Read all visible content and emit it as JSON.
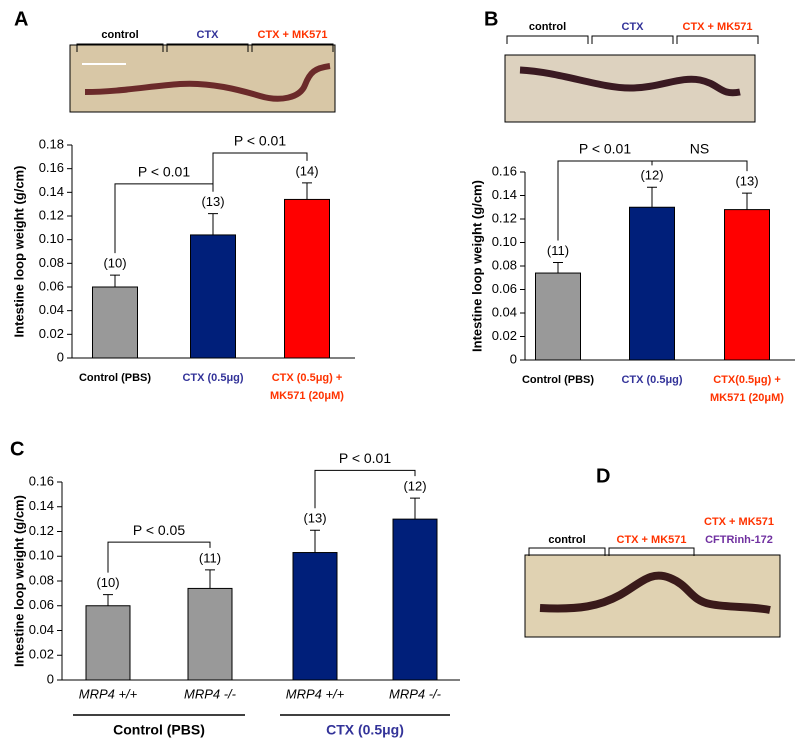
{
  "panel_letters": [
    "A",
    "B",
    "C",
    "D"
  ],
  "photos": [
    {
      "labels": [
        "control",
        "CTX",
        "CTX + MK571"
      ],
      "label_colors": [
        "#000000",
        "#333399",
        "#ff3300"
      ]
    },
    {
      "labels": [
        "control",
        "CTX",
        "CTX + MK571"
      ],
      "label_colors": [
        "#000000",
        "#333399",
        "#ff3300"
      ]
    },
    {
      "labels": [
        "control",
        "CTX + MK571",
        "CTX + MK571",
        "CFTRinh-172"
      ],
      "label_colors": [
        "#000000",
        "#ff3300",
        "#ff3300",
        "#7030a0"
      ]
    }
  ],
  "chart_data": [
    {
      "type": "bar",
      "ylabel": "Intestine loop weight (g/cm)",
      "categories": [
        "Control (PBS)",
        "CTX (0.5μg)",
        "CTX (0.5μg) +\nMK571 (20μM)"
      ],
      "category_colors": [
        "#000000",
        "#333399",
        "#ff3300"
      ],
      "values": [
        0.06,
        0.104,
        0.134
      ],
      "errors": [
        0.01,
        0.018,
        0.014
      ],
      "n_labels": [
        "(10)",
        "(13)",
        "(14)"
      ],
      "colors": [
        "#999999",
        "#001f7a",
        "#ff0000"
      ],
      "ylim": [
        0,
        0.18
      ],
      "yticks": [
        0,
        0.02,
        0.04,
        0.06,
        0.08,
        {
          "value": 0.1,
          "label": "0.10"
        },
        0.12,
        0.14,
        0.16,
        0.18
      ],
      "brackets": [
        {
          "from": 0,
          "to": 1,
          "label": "P < 0.01"
        },
        {
          "from": 1,
          "to": 2,
          "label": "P < 0.01"
        }
      ]
    },
    {
      "type": "bar",
      "ylabel": "Intestine loop weight (g/cm)",
      "categories": [
        "Control (PBS)",
        "CTX (0.5μg)",
        "CTX(0.5μg) +\nMK571 (20μM)"
      ],
      "category_colors": [
        "#000000",
        "#333399",
        "#ff3300"
      ],
      "values": [
        0.074,
        0.13,
        0.128
      ],
      "errors": [
        0.009,
        0.017,
        0.014
      ],
      "n_labels": [
        "(11)",
        "(12)",
        "(13)"
      ],
      "colors": [
        "#999999",
        "#001f7a",
        "#ff0000"
      ],
      "ylim": [
        0,
        0.16
      ],
      "yticks": [
        0,
        0.02,
        0.04,
        0.06,
        0.08,
        {
          "value": 0.1,
          "label": "0.10"
        },
        0.12,
        0.14,
        0.16
      ],
      "brackets": [
        {
          "from": 0,
          "to": 1,
          "label": "P < 0.01"
        },
        {
          "from": 1,
          "to": 2,
          "label": "NS"
        }
      ]
    },
    {
      "type": "bar",
      "ylabel": "Intestine loop weight (g/cm)",
      "categories": [
        "MRP4 +/+",
        "MRP4 -/-",
        "MRP4 +/+",
        "MRP4 -/-"
      ],
      "category_colors": [
        "#000000",
        "#000000",
        "#000000",
        "#000000"
      ],
      "values": [
        0.06,
        0.074,
        0.103,
        0.13
      ],
      "errors": [
        0.009,
        0.015,
        0.018,
        0.017
      ],
      "n_labels": [
        "(10)",
        "(11)",
        "(13)",
        "(12)"
      ],
      "colors": [
        "#999999",
        "#999999",
        "#001f7a",
        "#001f7a"
      ],
      "ylim": [
        0,
        0.16
      ],
      "yticks": [
        0,
        0.02,
        0.04,
        0.06,
        0.08,
        {
          "value": 0.1,
          "label": "0.10"
        },
        0.12,
        0.14,
        0.16
      ],
      "brackets": [
        {
          "from": 0,
          "to": 1,
          "label": "P < 0.05"
        },
        {
          "from": 2,
          "to": 3,
          "label": "P < 0.01"
        }
      ],
      "groups": [
        {
          "label": "Control (PBS)",
          "from": 0,
          "to": 1,
          "color": "#000000"
        },
        {
          "label": "CTX (0.5μg)",
          "from": 2,
          "to": 3,
          "color": "#333399"
        }
      ]
    }
  ]
}
